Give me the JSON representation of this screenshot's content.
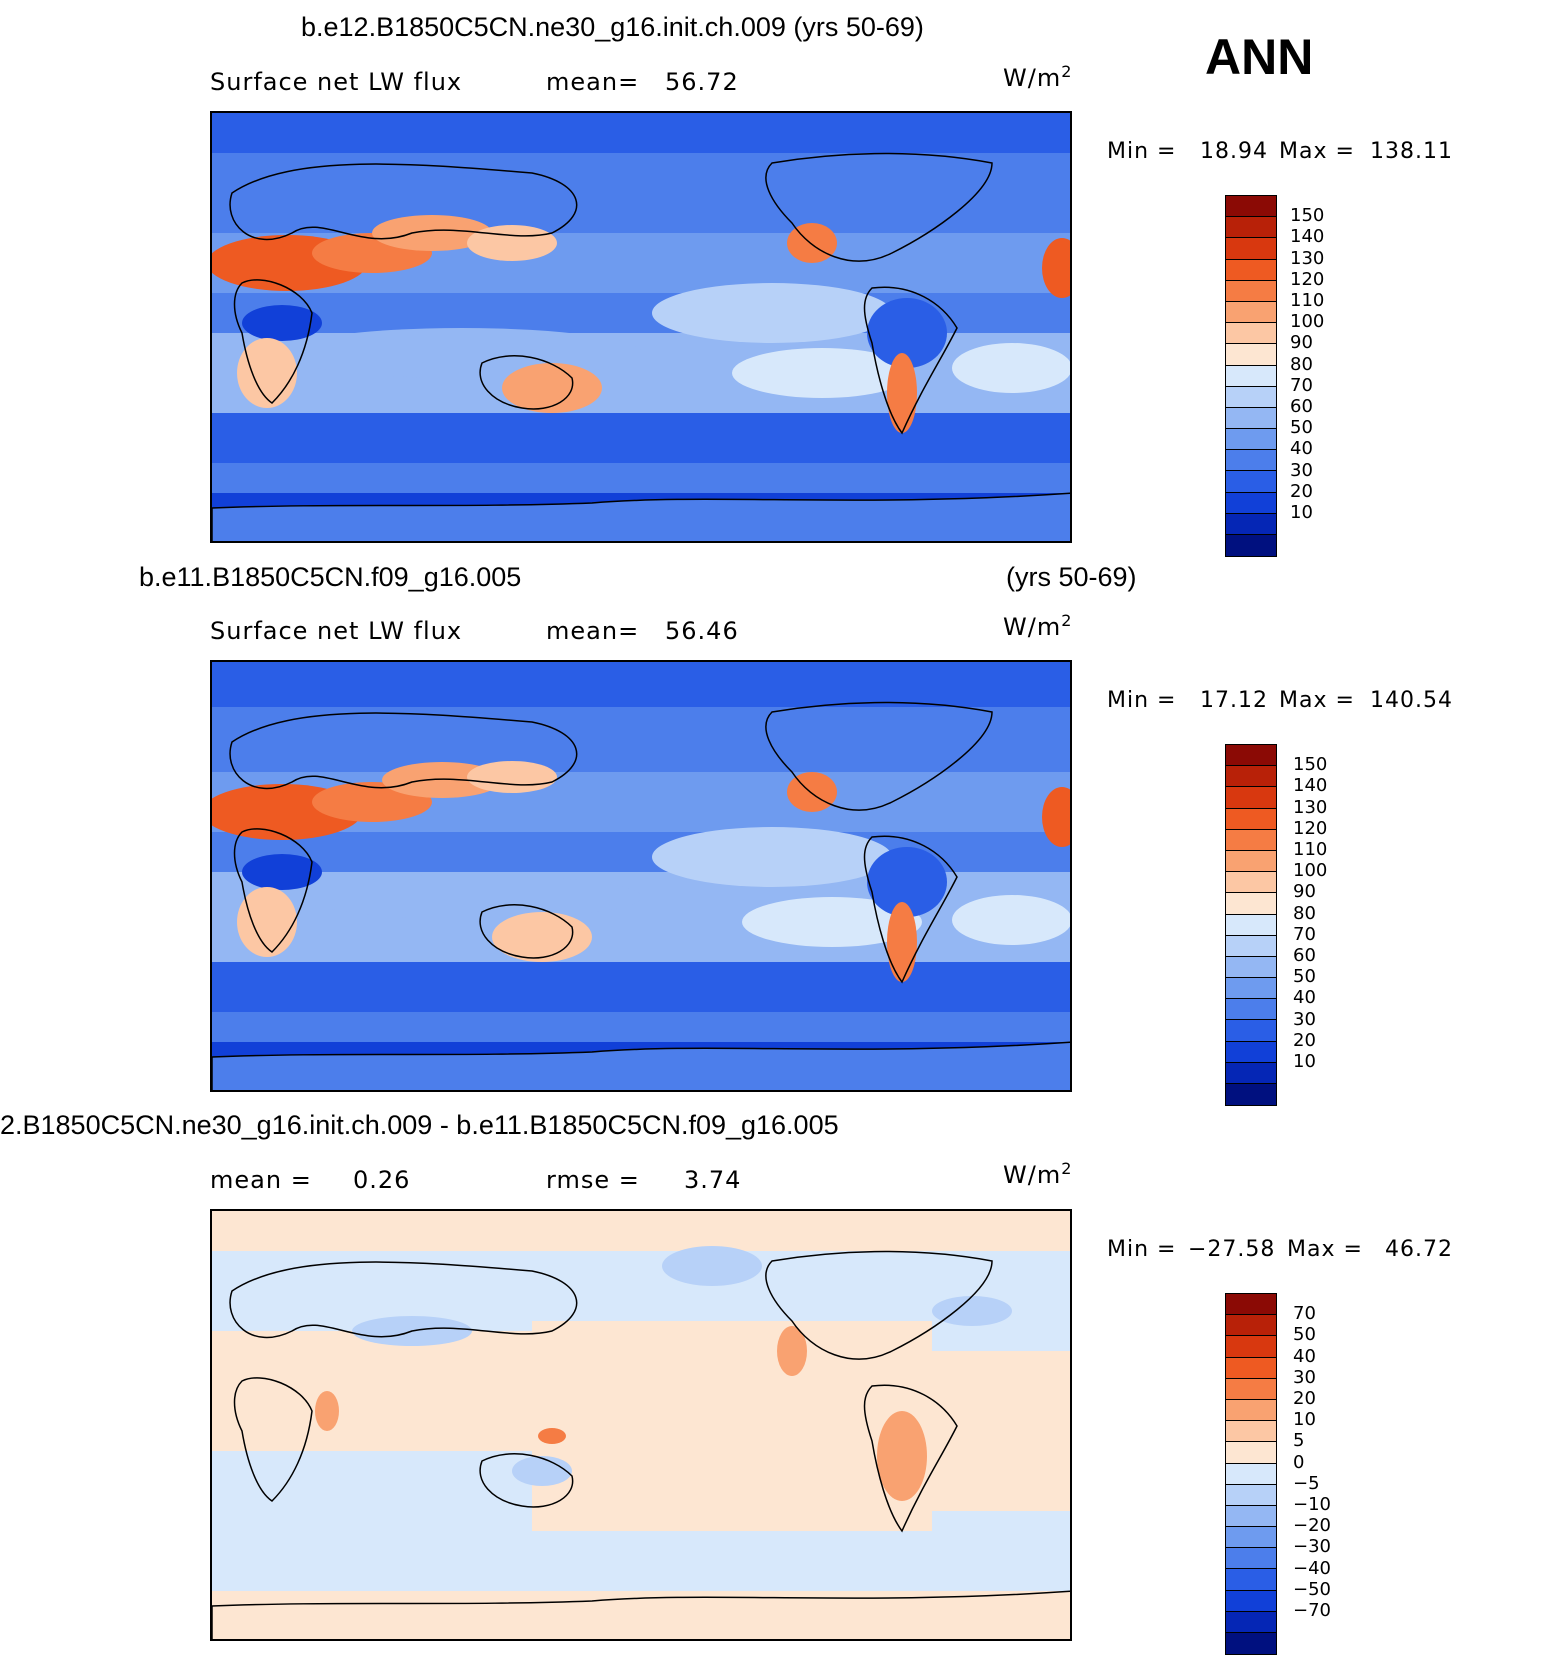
{
  "season": "ANN",
  "units": "W/m",
  "units_sup": "2",
  "panels": [
    {
      "title_left": "b.e12.B1850C5CN.ne30_g16.init.ch.009 (yrs 50-69)",
      "title_right": "",
      "field": "Surface net LW flux",
      "stat1_label": "mean=",
      "stat1_value": "56.72",
      "stat2_label": "",
      "stat2_value": "",
      "min_label": "Min =",
      "min_value": "18.94",
      "max_label": "Max =",
      "max_value": "138.11",
      "colorbar_levels": [
        "150",
        "140",
        "130",
        "120",
        "110",
        "100",
        "90",
        "80",
        "70",
        "60",
        "50",
        "40",
        "30",
        "20",
        "10"
      ],
      "colorbar_colors": [
        "#8b0a05",
        "#b82108",
        "#d8380f",
        "#ee5a22",
        "#f57c44",
        "#f9a271",
        "#fcc7a4",
        "#fde6d2",
        "#d7e8fb",
        "#b7d1f8",
        "#94b7f3",
        "#6e9bef",
        "#4c7eeb",
        "#2a5ee6",
        "#1140d8",
        "#0526b5",
        "#00107f"
      ]
    },
    {
      "title_left": "b.e11.B1850C5CN.f09_g16.005",
      "title_right": "(yrs 50-69)",
      "field": "Surface net LW flux",
      "stat1_label": "mean=",
      "stat1_value": "56.46",
      "stat2_label": "",
      "stat2_value": "",
      "min_label": "Min =",
      "min_value": "17.12",
      "max_label": "Max =",
      "max_value": "140.54",
      "colorbar_levels": [
        "150",
        "140",
        "130",
        "120",
        "110",
        "100",
        "90",
        "80",
        "70",
        "60",
        "50",
        "40",
        "30",
        "20",
        "10"
      ],
      "colorbar_colors": [
        "#8b0a05",
        "#b82108",
        "#d8380f",
        "#ee5a22",
        "#f57c44",
        "#f9a271",
        "#fcc7a4",
        "#fde6d2",
        "#d7e8fb",
        "#b7d1f8",
        "#94b7f3",
        "#6e9bef",
        "#4c7eeb",
        "#2a5ee6",
        "#1140d8",
        "#0526b5",
        "#00107f"
      ]
    },
    {
      "title_left": "2.B1850C5CN.ne30_g16.init.ch.009 - b.e11.B1850C5CN.f09_g16.005",
      "title_right": "",
      "field": "",
      "stat1_label": "mean =",
      "stat1_value": "0.26",
      "stat2_label": "rmse =",
      "stat2_value": "3.74",
      "min_label": "Min =",
      "min_value": "−27.58",
      "max_label": "Max =",
      "max_value": "46.72",
      "colorbar_levels": [
        "70",
        "50",
        "40",
        "30",
        "20",
        "10",
        "5",
        "0",
        "−5",
        "−10",
        "−20",
        "−30",
        "−40",
        "−50",
        "−70"
      ],
      "colorbar_colors": [
        "#8b0a05",
        "#b82108",
        "#d8380f",
        "#ee5a22",
        "#f57c44",
        "#f9a271",
        "#fcc7a4",
        "#fde6d2",
        "#d7e8fb",
        "#b7d1f8",
        "#94b7f3",
        "#6e9bef",
        "#4c7eeb",
        "#2a5ee6",
        "#1140d8",
        "#0526b5",
        "#00107f"
      ]
    }
  ]
}
